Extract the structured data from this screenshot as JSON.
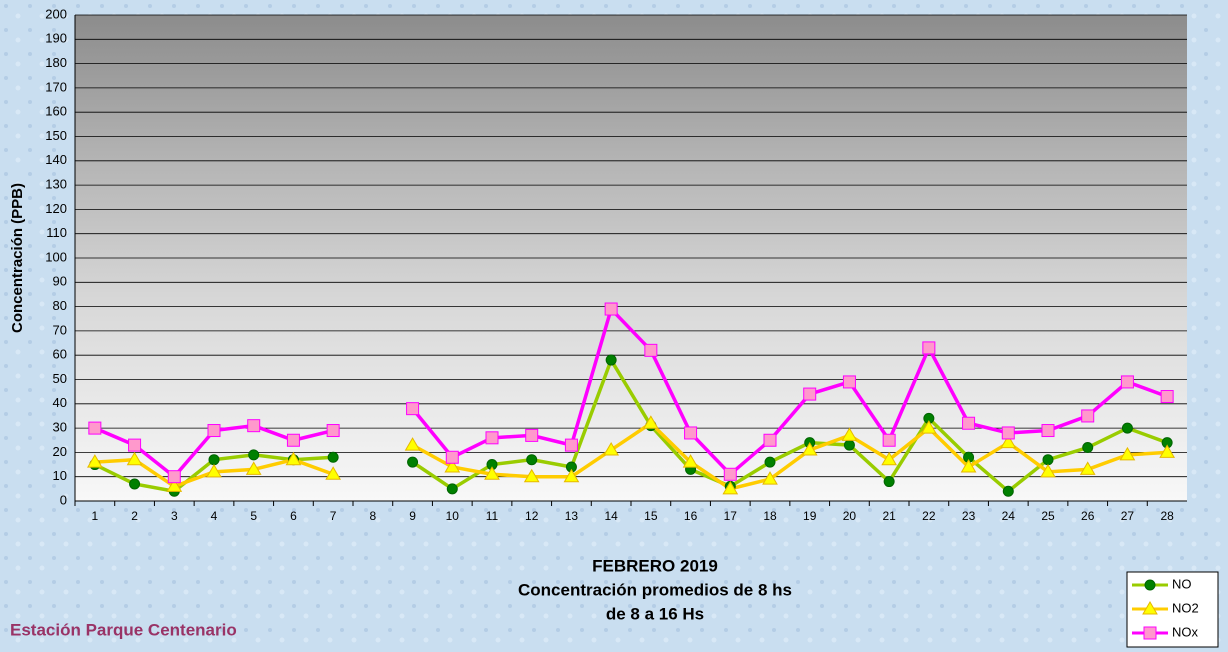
{
  "chart_data": {
    "type": "line",
    "title": "FEBRERO 2019",
    "subtitle": [
      "Concentración promedios de 8 hs",
      "de 8 a 16 Hs"
    ],
    "annotation": "Estación Parque Centenario",
    "y_label": "Concentración (PPB)",
    "categories": [
      "1",
      "2",
      "3",
      "4",
      "5",
      "6",
      "7",
      "8",
      "9",
      "10",
      "11",
      "12",
      "13",
      "14",
      "15",
      "16",
      "17",
      "18",
      "19",
      "20",
      "21",
      "22",
      "23",
      "24",
      "25",
      "26",
      "27",
      "28"
    ],
    "series": [
      {
        "name": "NO",
        "color": "#99cc00",
        "marker": "circle",
        "marker_color": "#008000",
        "values": [
          15,
          7,
          4,
          17,
          19,
          17,
          18,
          null,
          16,
          5,
          15,
          17,
          14,
          58,
          31,
          13,
          6,
          16,
          24,
          23,
          8,
          34,
          18,
          4,
          17,
          22,
          30,
          24
        ]
      },
      {
        "name": "NO2",
        "color": "#ffcc00",
        "marker": "triangle",
        "marker_color": "#ffff00",
        "values": [
          16,
          17,
          6,
          12,
          13,
          17,
          11,
          null,
          23,
          14,
          11,
          10,
          10,
          21,
          32,
          16,
          5,
          9,
          21,
          27,
          17,
          30,
          14,
          24,
          12,
          13,
          19,
          20
        ]
      },
      {
        "name": "NOx",
        "color": "#ff00ff",
        "marker": "square",
        "marker_color": "#ff99cc",
        "values": [
          30,
          23,
          10,
          29,
          31,
          25,
          29,
          null,
          38,
          18,
          26,
          27,
          23,
          79,
          62,
          28,
          11,
          25,
          44,
          49,
          25,
          63,
          32,
          28,
          29,
          35,
          49,
          43
        ]
      }
    ],
    "ylim": [
      0,
      200
    ],
    "yticks": [
      0,
      10,
      20,
      30,
      40,
      50,
      60,
      70,
      80,
      90,
      100,
      110,
      120,
      130,
      140,
      150,
      160,
      170,
      180,
      190,
      200
    ],
    "grid": true,
    "legend": "bottom-right"
  }
}
